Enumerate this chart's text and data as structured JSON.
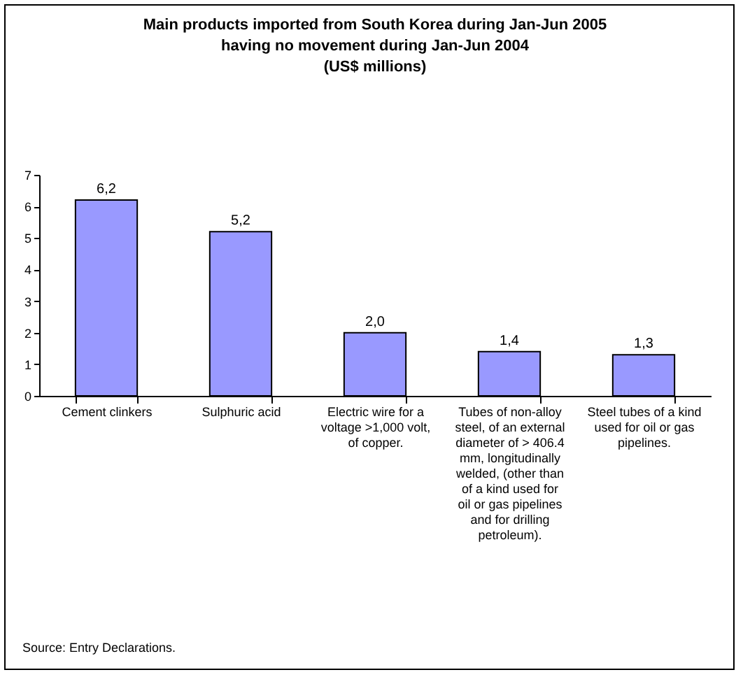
{
  "chart_data": {
    "type": "bar",
    "title": "Main products imported from South Korea during Jan-Jun 2005 having no movement during Jan-Jun 2004",
    "subtitle": "(US$ millions)",
    "categories": [
      "Cement clinkers",
      "Sulphuric acid",
      "Electric wire for a voltage >1,000 volt, of copper.",
      "Tubes of non-alloy steel, of an external diameter of > 406.4 mm, longitudinally welded, (other than of a kind used for oil or gas pipelines and for drilling petroleum).",
      "Steel tubes of a kind used for oil or gas pipelines."
    ],
    "values": [
      6.2,
      5.2,
      2.0,
      1.4,
      1.3
    ],
    "value_labels": [
      "6,2",
      "5,2",
      "2,0",
      "1,4",
      "1,3"
    ],
    "color": "#9999ff",
    "ylim": [
      0,
      7
    ],
    "yticks": [
      0,
      1,
      2,
      3,
      4,
      5,
      6,
      7
    ],
    "annotations": [
      "Source: Entry Declarations."
    ]
  }
}
